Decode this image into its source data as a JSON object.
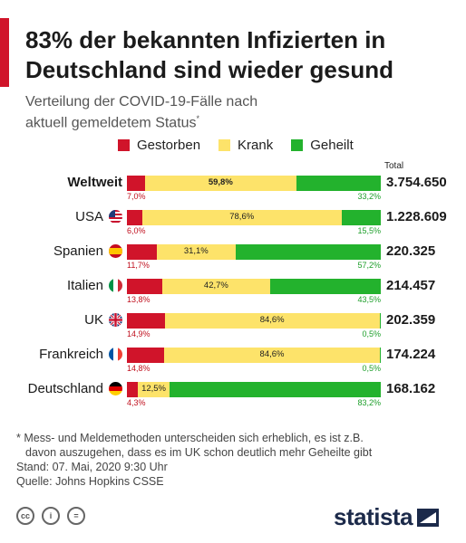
{
  "title_line1": "83% der bekannten Infizierten in",
  "title_line2": "Deutschland sind wieder gesund",
  "subtitle_line1": "Verteilung der COVID-19-Fälle nach",
  "subtitle_line2": "aktuell gemeldetem Status",
  "subtitle_mark": "*",
  "total_header": "Total",
  "colors": {
    "dead": "#d0142a",
    "sick": "#fde36a",
    "healed": "#23b22d",
    "accent": "#d0142a",
    "brand": "#1c2a4a"
  },
  "chart_data": {
    "type": "bar",
    "stacked": "horizontal-100%",
    "legend": {
      "position": "top",
      "entries": [
        "Gestorben",
        "Krank",
        "Geheilt"
      ]
    },
    "categories": [
      "Weltweit",
      "USA",
      "Spanien",
      "Italien",
      "UK",
      "Frankreich",
      "Deutschland"
    ],
    "series": [
      {
        "name": "Gestorben",
        "values": [
          7.0,
          6.0,
          11.7,
          13.8,
          14.9,
          14.8,
          4.3
        ]
      },
      {
        "name": "Krank",
        "values": [
          59.8,
          78.6,
          31.1,
          42.7,
          84.6,
          84.6,
          12.5
        ]
      },
      {
        "name": "Geheilt",
        "values": [
          33.2,
          15.5,
          57.2,
          43.5,
          0.5,
          0.5,
          83.2
        ]
      }
    ],
    "labels": {
      "dead": [
        "7,0%",
        "6,0%",
        "11,7%",
        "13,8%",
        "14,9%",
        "14,8%",
        "4,3%"
      ],
      "sick": [
        "59,8%",
        "78,6%",
        "31,1%",
        "42,7%",
        "84,6%",
        "84,6%",
        "12,5%"
      ],
      "healed": [
        "33,2%",
        "15,5%",
        "57,2%",
        "43,5%",
        "0,5%",
        "0,5%",
        "83,2%"
      ]
    },
    "totals": [
      "3.754.650",
      "1.228.609",
      "220.325",
      "214.457",
      "202.359",
      "174.224",
      "168.162"
    ],
    "flags": [
      "",
      "us-flag-icon",
      "es-flag-icon",
      "it-flag-icon",
      "uk-flag-icon",
      "fr-flag-icon",
      "de-flag-icon"
    ]
  },
  "footnote_line1": "* Mess- und Meldemethoden unterscheiden sich erheblich, es ist z.B.",
  "footnote_line2": "davon auszugehen, dass es im UK schon deutlich mehr Geheilte gibt",
  "footnote_line3": "Stand: 07. Mai, 2020 9:30 Uhr",
  "footnote_line4": "Quelle: Johns Hopkins CSSE",
  "brand_name": "statista"
}
